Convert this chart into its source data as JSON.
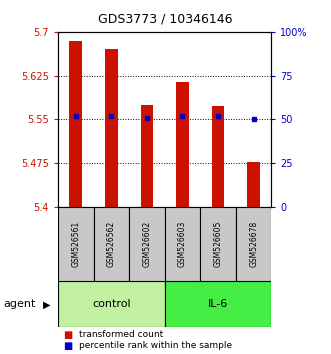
{
  "title": "GDS3773 / 10346146",
  "samples": [
    "GSM526561",
    "GSM526562",
    "GSM526602",
    "GSM526603",
    "GSM526605",
    "GSM526678"
  ],
  "bar_values": [
    5.685,
    5.67,
    5.575,
    5.615,
    5.573,
    5.477
  ],
  "percentile_values": [
    52,
    52,
    51,
    52,
    52,
    50
  ],
  "groups": [
    {
      "label": "control",
      "indices": [
        0,
        1,
        2
      ],
      "color": "#c0f0a0"
    },
    {
      "label": "IL-6",
      "indices": [
        3,
        4,
        5
      ],
      "color": "#44ee44"
    }
  ],
  "ylim": [
    5.4,
    5.7
  ],
  "yticks": [
    5.4,
    5.475,
    5.55,
    5.625,
    5.7
  ],
  "ytick_labels": [
    "5.4",
    "5.475",
    "5.55",
    "5.625",
    "5.7"
  ],
  "y2ticks": [
    0,
    25,
    50,
    75,
    100
  ],
  "y2tick_labels": [
    "0",
    "25",
    "50",
    "75",
    "100%"
  ],
  "bar_color": "#cc1100",
  "percentile_color": "#0000cc",
  "bar_width": 0.35,
  "legend_items": [
    {
      "label": "transformed count",
      "color": "#cc1100"
    },
    {
      "label": "percentile rank within the sample",
      "color": "#0000cc"
    }
  ],
  "tick_color_left": "#cc1100",
  "tick_color_right": "#0000cc",
  "sample_box_color": "#c8c8c8"
}
